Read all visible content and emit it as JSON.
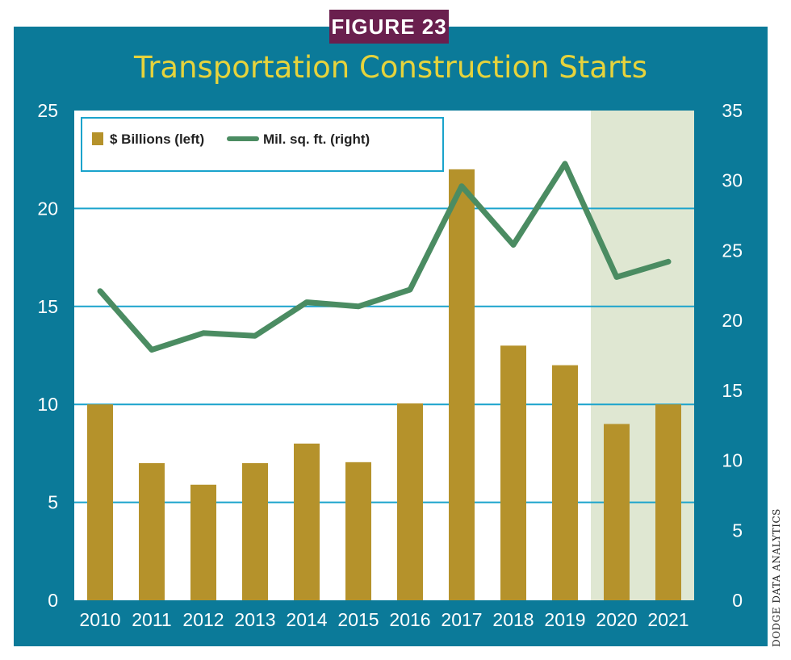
{
  "figure_label": "FIGURE 23",
  "source_note": "DODGE DATA ANALYTICS",
  "colors": {
    "frame": "#0b7a99",
    "bar": "#b5922b",
    "line": "#4b8c62",
    "gridline": "#1aa3cc",
    "forecast_shade": "#dfe7d2",
    "title": "#e6d33c",
    "figure_label_bg": "#6a1f4e"
  },
  "chart_data": {
    "type": "bar",
    "title": "Transportation Construction Starts",
    "categories": [
      "2010",
      "2011",
      "2012",
      "2013",
      "2014",
      "2015",
      "2016",
      "2017",
      "2018",
      "2019",
      "2020",
      "2021"
    ],
    "series": [
      {
        "name": "$ Billions (left)",
        "type": "bar",
        "axis": "left",
        "values": [
          10,
          7,
          5.9,
          7,
          8,
          7.05,
          10.05,
          22,
          13,
          12,
          9,
          10
        ]
      },
      {
        "name": "Mil. sq. ft. (right)",
        "type": "line",
        "axis": "right",
        "values": [
          22.1,
          17.9,
          19.1,
          18.9,
          21.3,
          21,
          22.2,
          29.6,
          25.4,
          31.2,
          23.1,
          24.2
        ]
      }
    ],
    "y_left": {
      "range": [
        0,
        25
      ],
      "ticks": [
        "0",
        "5",
        "10",
        "15",
        "20",
        "25"
      ]
    },
    "y_right": {
      "range": [
        0,
        35
      ],
      "ticks": [
        "0",
        "5",
        "10",
        "15",
        "20",
        "25",
        "30",
        "35"
      ]
    },
    "forecast_shaded_categories": [
      "2020",
      "2021"
    ],
    "grid": "horizontal",
    "legend_position": "top-left"
  }
}
